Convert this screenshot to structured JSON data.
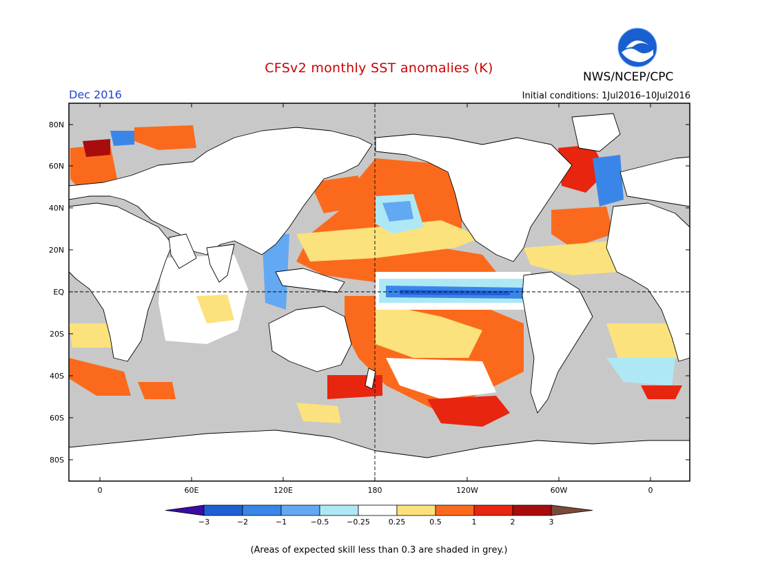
{
  "title": "CFSv2 monthly SST anomalies (K)",
  "agency": "NWS/NCEP/CPC",
  "logo_text": "NOAA",
  "month": "Dec 2016",
  "initial_conditions": "Initial conditions: 1Jul2016–10Jul2016",
  "lat_labels": [
    "80N",
    "60N",
    "40N",
    "20N",
    "EQ",
    "20S",
    "40S",
    "60S",
    "80S"
  ],
  "lon_labels": [
    "0",
    "60E",
    "120E",
    "180",
    "120W",
    "60W",
    "0"
  ],
  "colorbar": {
    "labels": [
      "−3",
      "−2",
      "−1",
      "−0.5",
      "−0.25",
      "0.25",
      "0.5",
      "1",
      "2",
      "3"
    ],
    "colors": [
      "#3a0ca3",
      "#1f5fd6",
      "#3a86e8",
      "#63a8f2",
      "#aee8f5",
      "#ffffff",
      "#fbe27c",
      "#fb6a1c",
      "#e8250f",
      "#a80c0c",
      "#7a4a3a"
    ]
  },
  "footnote": "(Areas of expected skill less than 0.3 are shaded in grey.)",
  "colors": {
    "land": "#ffffff",
    "low_skill": "#c8c8c8",
    "title": "#cc0000",
    "month": "#2244cc"
  }
}
